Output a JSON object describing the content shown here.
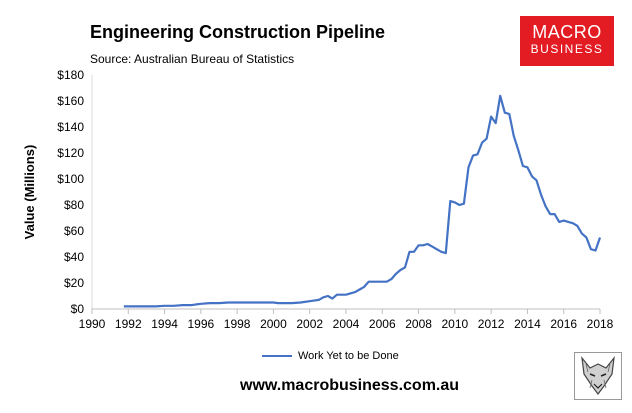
{
  "chart_data": {
    "type": "line",
    "title": "Engineering Construction Pipeline",
    "subtitle": "Source: Australian Bureau of Statistics",
    "xlabel": "",
    "ylabel": "Value (Millions)",
    "xlim": [
      1990,
      2018
    ],
    "ylim": [
      0,
      180
    ],
    "x_ticks": [
      1990,
      1992,
      1994,
      1996,
      1998,
      2000,
      2002,
      2004,
      2006,
      2008,
      2010,
      2012,
      2014,
      2016,
      2018
    ],
    "y_ticks": [
      0,
      20,
      40,
      60,
      80,
      100,
      120,
      140,
      160,
      180
    ],
    "y_tick_labels": [
      "$0",
      "$20",
      "$40",
      "$60",
      "$80",
      "$100",
      "$120",
      "$140",
      "$160",
      "$180"
    ],
    "grid": false,
    "legend_position": "bottom",
    "series": [
      {
        "name": "Work Yet to be Done",
        "color": "#4472c4",
        "x": [
          1991.75,
          1992.0,
          1992.5,
          1993.0,
          1993.5,
          1994.0,
          1994.5,
          1995.0,
          1995.25,
          1995.5,
          1995.75,
          1996.0,
          1996.5,
          1997.0,
          1997.5,
          1998.0,
          1998.5,
          1999.0,
          1999.5,
          2000.0,
          2000.25,
          2000.5,
          2000.75,
          2001.0,
          2001.5,
          2002.0,
          2002.5,
          2002.75,
          2003.0,
          2003.25,
          2003.5,
          2003.75,
          2004.0,
          2004.5,
          2004.75,
          2005.0,
          2005.25,
          2005.5,
          2005.75,
          2006.0,
          2006.25,
          2006.5,
          2006.75,
          2007.0,
          2007.25,
          2007.5,
          2007.75,
          2008.0,
          2008.25,
          2008.5,
          2008.75,
          2009.0,
          2009.25,
          2009.5,
          2009.75,
          2010.0,
          2010.25,
          2010.5,
          2010.75,
          2011.0,
          2011.25,
          2011.5,
          2011.75,
          2012.0,
          2012.25,
          2012.5,
          2012.75,
          2013.0,
          2013.25,
          2013.5,
          2013.75,
          2014.0,
          2014.25,
          2014.5,
          2014.75,
          2015.0,
          2015.25,
          2015.5,
          2015.75,
          2016.0,
          2016.25,
          2016.5,
          2016.75,
          2017.0,
          2017.25,
          2017.5,
          2017.75,
          2018.0
        ],
        "values": [
          2,
          2,
          2,
          2,
          2,
          2.5,
          2.5,
          3,
          3,
          3,
          3.5,
          4,
          4.5,
          4.5,
          5,
          5,
          5,
          5,
          5,
          5,
          4.5,
          4.5,
          4.5,
          4.5,
          5,
          6,
          7,
          9,
          10,
          8,
          11,
          11,
          11,
          13,
          15,
          17,
          21,
          21,
          21,
          21,
          21,
          23,
          27,
          30,
          32,
          44,
          44,
          49,
          49,
          50,
          48,
          46,
          44,
          43,
          83,
          82,
          80,
          81,
          109,
          118,
          119,
          128,
          131,
          148,
          143,
          164,
          151,
          150,
          133,
          122,
          110,
          109,
          102,
          99,
          88,
          79,
          73,
          73,
          67,
          68,
          67,
          66,
          64,
          58,
          55,
          46,
          45,
          55
        ]
      }
    ]
  },
  "branding": {
    "logo_line1": "MACRO",
    "logo_line2": "BUSINESS",
    "logo_color": "#e31b23",
    "website": "www.macrobusiness.com.au"
  }
}
